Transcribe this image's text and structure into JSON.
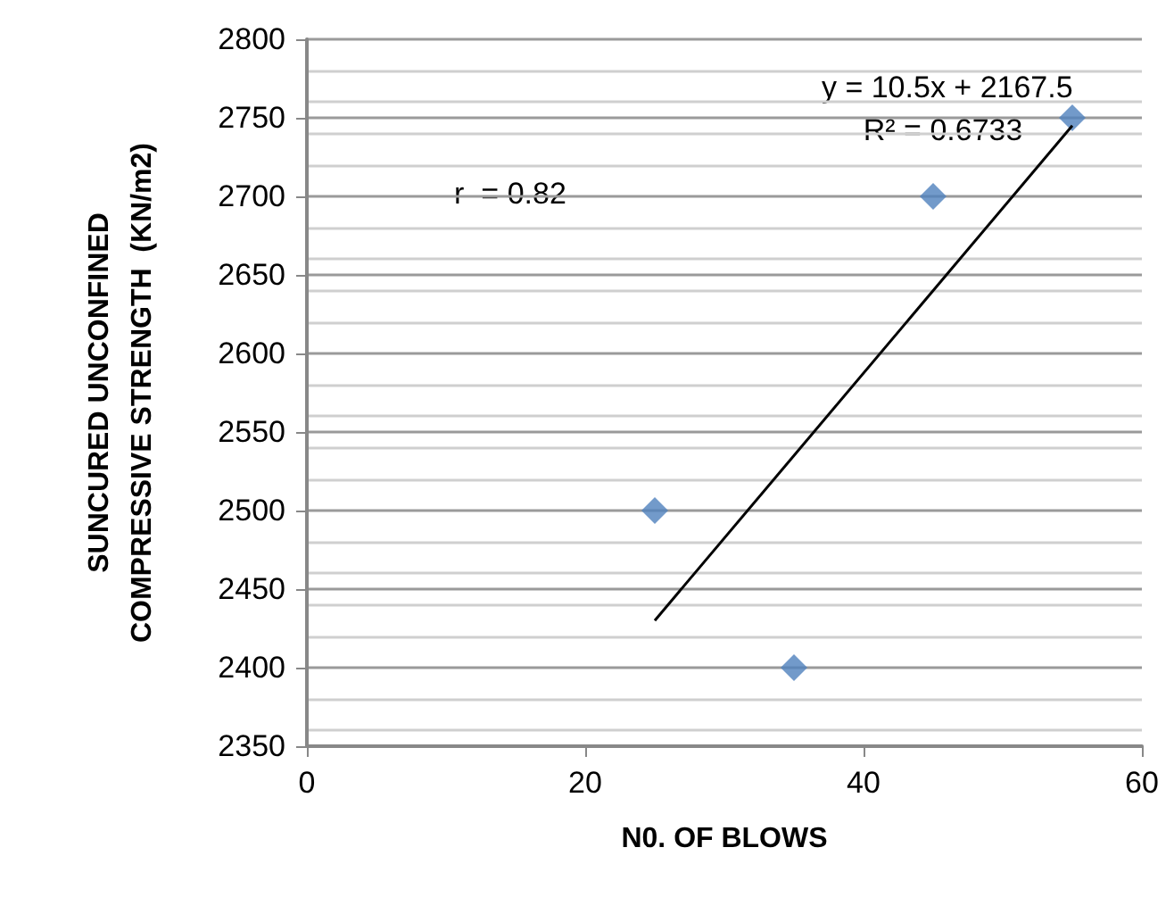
{
  "chart_data": {
    "type": "scatter",
    "xlabel": "N0. OF BLOWS",
    "ylabel": "SUNCURED UNCONFINED\nCOMPRESSIVE STRENGTH  (KN/m2)",
    "annotations": [
      "y = 10.5x + 2167.5",
      "R² = 0.6733",
      "r  = 0.82"
    ],
    "series": [
      {
        "color": "#4f81bd",
        "marker": "diamond",
        "x": [
          25,
          35,
          45,
          55
        ],
        "values": [
          2500,
          2400,
          2700,
          2750
        ]
      },
      {
        "type": "line",
        "color": "#000000",
        "marker": "none",
        "line_style": "solid",
        "x": [
          25,
          55
        ],
        "values": [
          2430,
          2745
        ]
      }
    ],
    "xlim": [
      0,
      60
    ],
    "xticks": [
      0,
      20,
      40,
      60
    ],
    "ylim": [
      2350,
      2800
    ],
    "yticks": [
      2350,
      2400,
      2450,
      2500,
      2550,
      2600,
      2650,
      2700,
      2750,
      2800
    ],
    "grid": "y"
  }
}
